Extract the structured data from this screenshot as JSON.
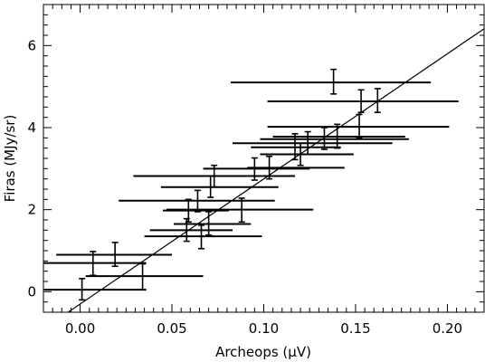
{
  "chart_data": {
    "type": "scatter",
    "title": "",
    "xlabel": "Archeops (μV)",
    "ylabel": "Firas (MJy/sr)",
    "xlim": [
      -0.02,
      0.22
    ],
    "ylim": [
      -0.5,
      7.0
    ],
    "x_ticks": [
      0.0,
      0.05,
      0.1,
      0.15,
      0.2
    ],
    "x_tick_labels": [
      "0.00",
      "0.05",
      "0.10",
      "0.15",
      "0.20"
    ],
    "y_ticks": [
      0,
      2,
      4,
      6
    ],
    "y_tick_labels": [
      "0",
      "2",
      "4",
      "6"
    ],
    "grid": false,
    "legend": null,
    "fit_line": {
      "slope": 30.5,
      "intercept": -0.3
    },
    "points": [
      {
        "x": 0.138,
        "y": 5.1,
        "x_lo": 0.082,
        "x_hi": 0.191,
        "y_lo": 4.82,
        "y_hi": 5.42
      },
      {
        "x": 0.162,
        "y": 4.64,
        "x_lo": 0.118,
        "x_hi": 0.204,
        "y_lo": 4.37,
        "y_hi": 4.95
      },
      {
        "x": 0.153,
        "y": 4.64,
        "x_lo": 0.102,
        "x_hi": 0.206,
        "y_lo": 4.37,
        "y_hi": 4.92
      },
      {
        "x": 0.152,
        "y": 4.02,
        "x_lo": 0.102,
        "x_hi": 0.201,
        "y_lo": 3.75,
        "y_hi": 4.32
      },
      {
        "x": 0.14,
        "y": 3.78,
        "x_lo": 0.105,
        "x_hi": 0.177,
        "y_lo": 3.5,
        "y_hi": 4.08
      },
      {
        "x": 0.133,
        "y": 3.72,
        "x_lo": 0.098,
        "x_hi": 0.179,
        "y_lo": 3.47,
        "y_hi": 4.0
      },
      {
        "x": 0.124,
        "y": 3.62,
        "x_lo": 0.083,
        "x_hi": 0.17,
        "y_lo": 3.35,
        "y_hi": 3.9
      },
      {
        "x": 0.12,
        "y": 3.35,
        "x_lo": 0.098,
        "x_hi": 0.149,
        "y_lo": 3.08,
        "y_hi": 3.62
      },
      {
        "x": 0.117,
        "y": 3.52,
        "x_lo": 0.093,
        "x_hi": 0.142,
        "y_lo": 3.22,
        "y_hi": 3.85
      },
      {
        "x": 0.103,
        "y": 3.02,
        "x_lo": 0.091,
        "x_hi": 0.144,
        "y_lo": 2.75,
        "y_hi": 3.3
      },
      {
        "x": 0.095,
        "y": 3.0,
        "x_lo": 0.067,
        "x_hi": 0.125,
        "y_lo": 2.72,
        "y_hi": 3.26
      },
      {
        "x": 0.073,
        "y": 2.82,
        "x_lo": 0.029,
        "x_hi": 0.117,
        "y_lo": 2.55,
        "y_hi": 3.08
      },
      {
        "x": 0.071,
        "y": 2.55,
        "x_lo": 0.044,
        "x_hi": 0.108,
        "y_lo": 2.3,
        "y_hi": 2.82
      },
      {
        "x": 0.064,
        "y": 2.22,
        "x_lo": 0.021,
        "x_hi": 0.106,
        "y_lo": 1.95,
        "y_hi": 2.47
      },
      {
        "x": 0.088,
        "y": 2.0,
        "x_lo": 0.047,
        "x_hi": 0.127,
        "y_lo": 1.7,
        "y_hi": 2.28
      },
      {
        "x": 0.059,
        "y": 1.98,
        "x_lo": 0.045,
        "x_hi": 0.081,
        "y_lo": 1.7,
        "y_hi": 2.25
      },
      {
        "x": 0.07,
        "y": 1.65,
        "x_lo": 0.051,
        "x_hi": 0.093,
        "y_lo": 1.38,
        "y_hi": 1.95
      },
      {
        "x": 0.058,
        "y": 1.5,
        "x_lo": 0.038,
        "x_hi": 0.083,
        "y_lo": 1.23,
        "y_hi": 1.78
      },
      {
        "x": 0.066,
        "y": 1.35,
        "x_lo": 0.035,
        "x_hi": 0.099,
        "y_lo": 1.05,
        "y_hi": 1.62
      },
      {
        "x": 0.019,
        "y": 0.9,
        "x_lo": -0.013,
        "x_hi": 0.05,
        "y_lo": 0.62,
        "y_hi": 1.2
      },
      {
        "x": 0.007,
        "y": 0.7,
        "x_lo": -0.02,
        "x_hi": 0.036,
        "y_lo": 0.4,
        "y_hi": 0.98
      },
      {
        "x": 0.034,
        "y": 0.38,
        "x_lo": 0.003,
        "x_hi": 0.067,
        "y_lo": 0.05,
        "y_hi": 0.68
      },
      {
        "x": 0.001,
        "y": 0.05,
        "x_lo": -0.02,
        "x_hi": 0.036,
        "y_lo": -0.2,
        "y_hi": 0.32
      }
    ]
  }
}
